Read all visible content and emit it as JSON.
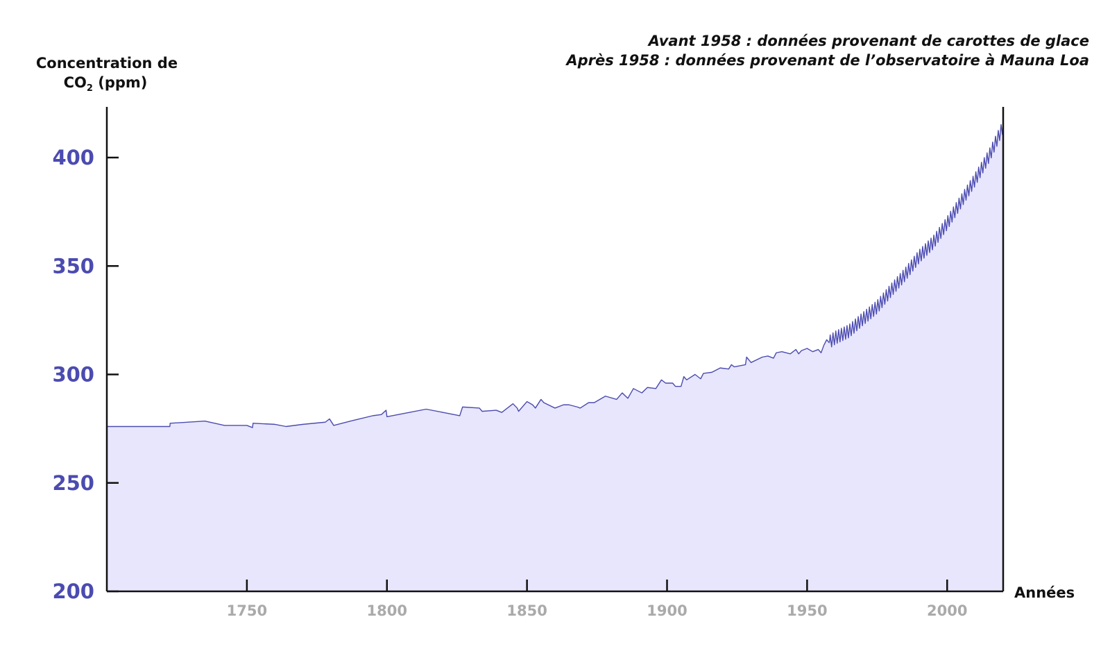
{
  "chart_data": {
    "type": "area",
    "ylabel_line1": "Concentration de",
    "ylabel_co": "CO",
    "ylabel_sub": "2",
    "ylabel_unit": " (ppm)",
    "xlabel": "Années",
    "annotations": [
      "Avant 1958 : données provenant de carottes de glace",
      "Après 1958 : données provenant de l’observatoire à Mauna Loa"
    ],
    "xlim": [
      1700,
      2020
    ],
    "ylim": [
      200,
      420
    ],
    "x_ticks": [
      1750,
      1800,
      1850,
      1900,
      1950,
      2000
    ],
    "y_ticks": [
      200,
      250,
      300,
      350,
      400
    ],
    "series": [
      {
        "x": [
          1700,
          1722.5,
          1722.6,
          1735,
          1742,
          1750,
          1752,
          1752.2,
          1760,
          1764,
          1770,
          1778,
          1779.5,
          1781,
          1787,
          1795,
          1798,
          1799.7,
          1800,
          1808,
          1814,
          1820,
          1826,
          1827,
          1833,
          1834,
          1839,
          1841,
          1845,
          1846.5,
          1847,
          1850,
          1852,
          1853,
          1855,
          1856,
          1860,
          1863,
          1865,
          1868,
          1869,
          1872,
          1874,
          1878,
          1882,
          1884,
          1886,
          1888,
          1891,
          1893,
          1896,
          1898,
          1899.5,
          1902,
          1903,
          1905,
          1906,
          1907,
          1910,
          1912,
          1913,
          1916,
          1919,
          1922,
          1923,
          1924,
          1928,
          1928.4,
          1930,
          1934,
          1936,
          1938,
          1939,
          1941,
          1944,
          1946,
          1947,
          1948,
          1950,
          1952,
          1954,
          1955,
          1956,
          1957,
          1958
        ],
        "y": [
          276,
          276,
          277.5,
          278.5,
          276.5,
          276.5,
          275.5,
          277.5,
          277,
          276,
          277,
          278,
          279.5,
          276.5,
          278.5,
          281,
          281.5,
          283.5,
          280.5,
          282.5,
          284,
          282.5,
          281,
          285,
          284.5,
          283,
          283.5,
          282.5,
          286.5,
          284.5,
          283,
          287.5,
          286,
          284.5,
          288.5,
          287,
          284.5,
          286,
          286,
          285,
          284.5,
          287,
          287,
          290,
          288.5,
          291.5,
          289,
          293.5,
          291.5,
          294,
          293.5,
          297.5,
          296,
          296,
          294.5,
          294.5,
          299,
          297.5,
          300,
          298,
          300.5,
          301,
          303,
          302.5,
          304.5,
          303.5,
          304.5,
          308,
          305.5,
          308,
          308.5,
          307.5,
          310,
          310.5,
          309.5,
          311.5,
          309.5,
          311,
          312,
          310.5,
          311.5,
          310,
          313.5,
          316,
          314.5
        ]
      },
      {
        "name": "Mauna Loa",
        "x": [
          1958,
          1960,
          1965,
          1970,
          1975,
          1980,
          1985,
          1990,
          1995,
          2000,
          2005,
          2010,
          2015,
          2020
        ],
        "y": [
          315,
          316.9,
          320,
          325.7,
          331.1,
          338.8,
          346.1,
          354.4,
          360.8,
          369.7,
          379.8,
          389.9,
          400.8,
          414.2
        ],
        "seasonal_amplitude_ppm": 3
      }
    ],
    "grid": false
  },
  "colors": {
    "accent": "#4b4bb1",
    "area_fill": "#e8e6fc",
    "axis": "#111111",
    "x_tick_label": "#aaaaaa"
  }
}
